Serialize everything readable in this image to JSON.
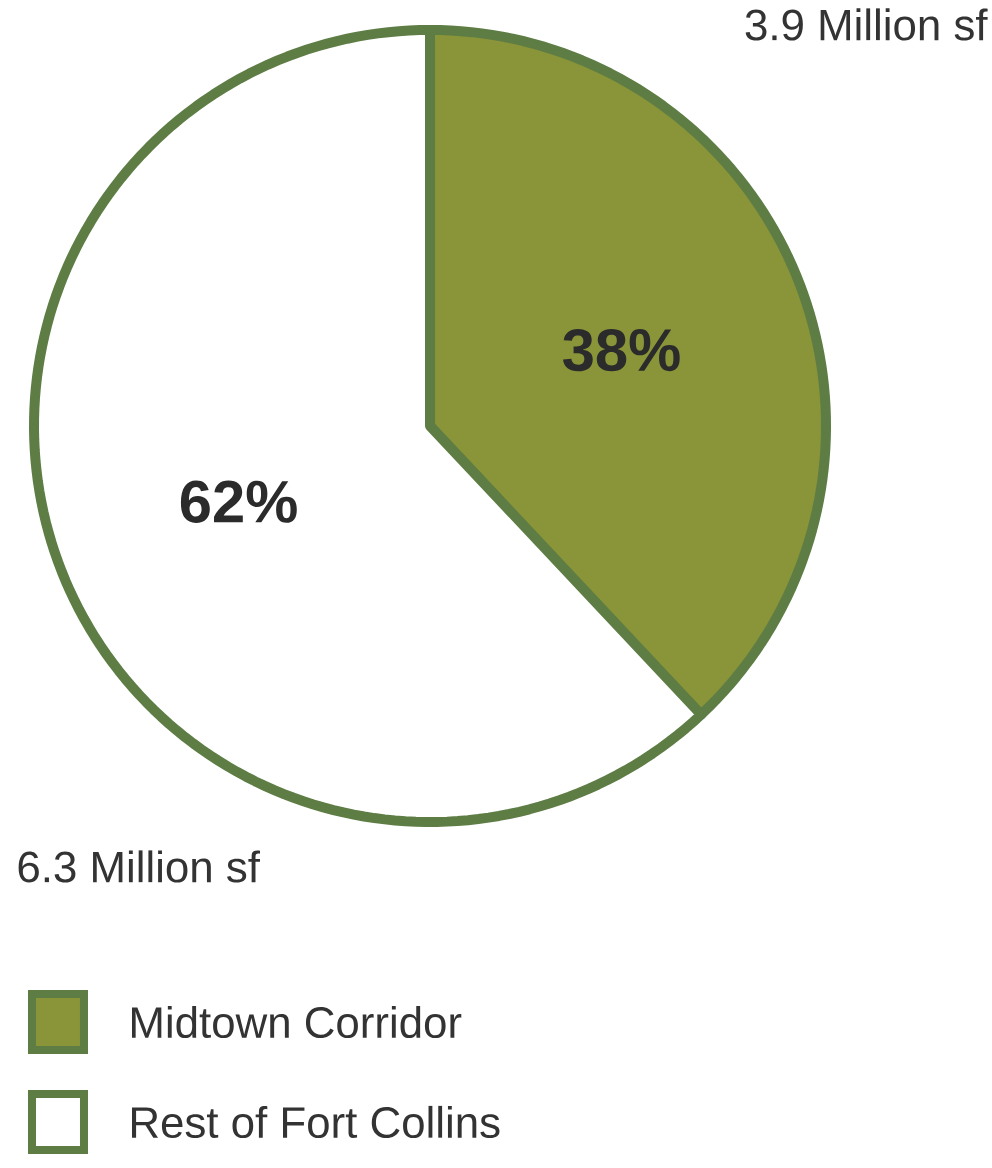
{
  "chart_data": {
    "type": "pie",
    "categories": [
      "Midtown Corridor",
      "Rest of Fort Collins"
    ],
    "values": [
      38,
      62
    ],
    "colors": [
      "#8a9438",
      "#ffffff"
    ],
    "value_labels": [
      "38%",
      "62%"
    ],
    "annotations": [
      "3.9 Million sf",
      "6.3 Million sf"
    ],
    "legend": "bottom left"
  }
}
